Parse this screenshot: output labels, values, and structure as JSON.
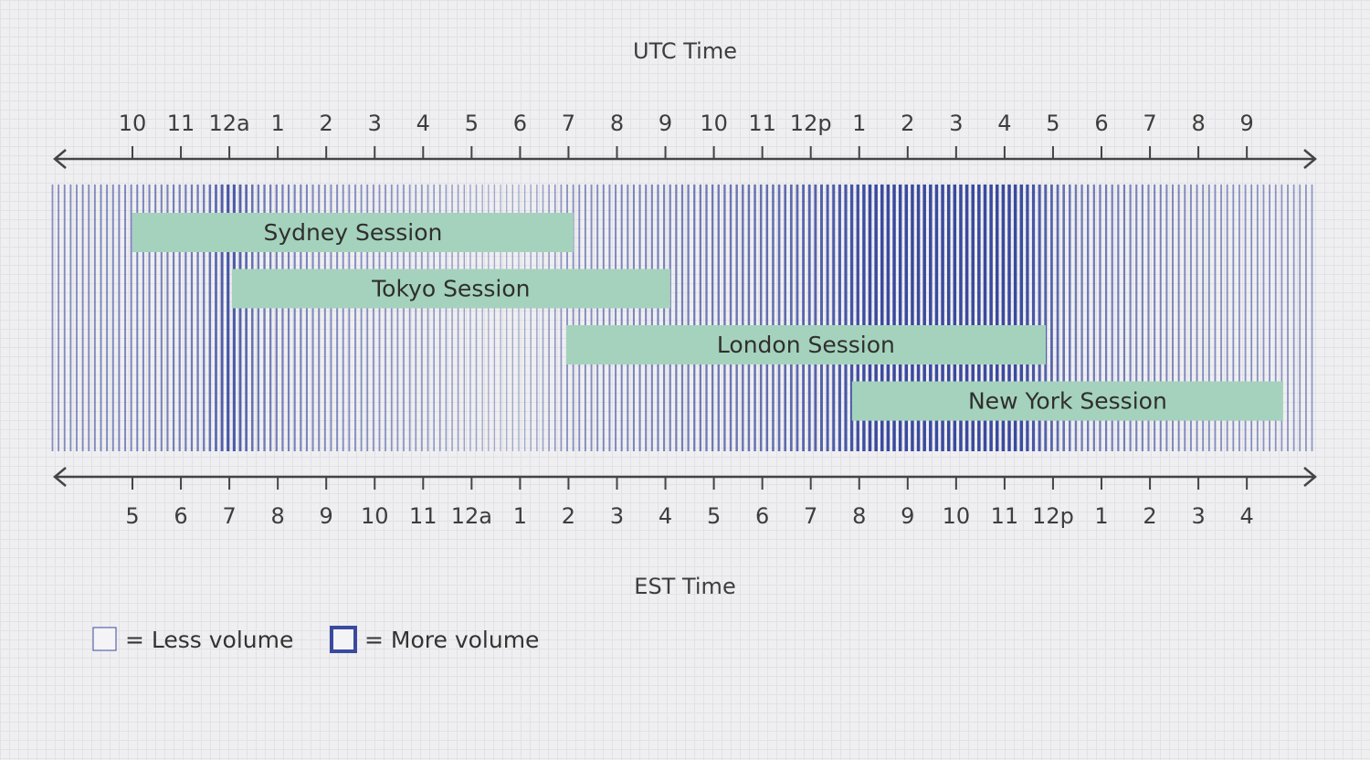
{
  "top_axis": {
    "title": "UTC Time",
    "ticks": [
      "10",
      "11",
      "12a",
      "1",
      "2",
      "3",
      "4",
      "5",
      "6",
      "7",
      "8",
      "9",
      "10",
      "11",
      "12p",
      "1",
      "2",
      "3",
      "4",
      "5",
      "6",
      "7",
      "8",
      "9"
    ]
  },
  "bottom_axis": {
    "title": "EST Time",
    "ticks": [
      "5",
      "6",
      "7",
      "8",
      "9",
      "10",
      "11",
      "12a",
      "1",
      "2",
      "3",
      "4",
      "5",
      "6",
      "7",
      "8",
      "9",
      "10",
      "11",
      "12p",
      "1",
      "2",
      "3",
      "4"
    ]
  },
  "sessions": [
    {
      "label": "Sydney Session",
      "start_utc_hour": 10,
      "end_utc_hour": 19.1
    },
    {
      "label": "Tokyo Session",
      "start_utc_hour": 12.05,
      "end_utc_hour": 21.1
    },
    {
      "label": "London Session",
      "start_utc_hour": 18.95,
      "end_utc_hour": 28.85
    },
    {
      "label": "New York Session",
      "start_utc_hour": 24.85,
      "end_utc_hour": 33.75
    }
  ],
  "volume_scale": {
    "start_utc_hour": 8.35,
    "end_utc_hour": 34.45,
    "density_keypoints": [
      [
        8.3,
        0.35
      ],
      [
        10.5,
        0.45
      ],
      [
        11.5,
        0.55
      ],
      [
        12.0,
        0.9
      ],
      [
        12.6,
        0.55
      ],
      [
        14.0,
        0.4
      ],
      [
        16.0,
        0.3
      ],
      [
        17.0,
        0.18
      ],
      [
        17.6,
        0.12
      ],
      [
        18.2,
        0.15
      ],
      [
        19.0,
        0.35
      ],
      [
        20.5,
        0.45
      ],
      [
        22.0,
        0.55
      ],
      [
        23.3,
        0.65
      ],
      [
        24.6,
        0.85
      ],
      [
        25.2,
        1.0
      ],
      [
        28.3,
        1.0
      ],
      [
        28.8,
        0.8
      ],
      [
        29.5,
        0.55
      ],
      [
        31.0,
        0.45
      ],
      [
        32.5,
        0.35
      ],
      [
        34.5,
        0.3
      ]
    ]
  },
  "legend": {
    "less_label": "= Less volume",
    "more_label": "= More volume"
  },
  "colors": {
    "background": "#efeff1",
    "grid": "#e2e2e6",
    "volume_bar": "#3a4a9e",
    "session_fill": "#a5d2bd",
    "axis": "#444444"
  }
}
